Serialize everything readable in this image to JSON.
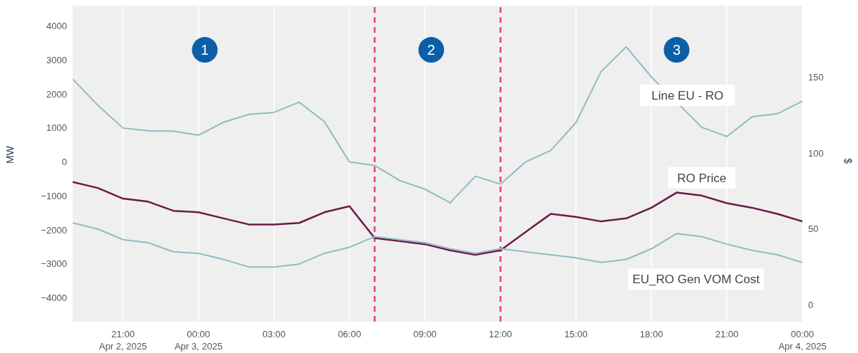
{
  "chart_data": {
    "type": "line",
    "x": [
      "2025-04-02T19:00",
      "2025-04-02T20:00",
      "2025-04-02T21:00",
      "2025-04-02T22:00",
      "2025-04-02T23:00",
      "2025-04-03T00:00",
      "2025-04-03T01:00",
      "2025-04-03T02:00",
      "2025-04-03T03:00",
      "2025-04-03T04:00",
      "2025-04-03T05:00",
      "2025-04-03T06:00",
      "2025-04-03T07:00",
      "2025-04-03T08:00",
      "2025-04-03T09:00",
      "2025-04-03T10:00",
      "2025-04-03T11:00",
      "2025-04-03T12:00",
      "2025-04-03T13:00",
      "2025-04-03T14:00",
      "2025-04-03T15:00",
      "2025-04-03T16:00",
      "2025-04-03T17:00",
      "2025-04-03T18:00",
      "2025-04-03T19:00",
      "2025-04-03T20:00",
      "2025-04-03T21:00",
      "2025-04-03T22:00",
      "2025-04-03T23:00",
      "2025-04-04T00:00"
    ],
    "series": [
      {
        "name": "Line EU - RO",
        "color": "#8fbcc4",
        "values": [
          2440,
          1670,
          1000,
          920,
          910,
          790,
          1170,
          1400,
          1460,
          1760,
          1190,
          0,
          -100,
          -550,
          -800,
          -1200,
          -420,
          -650,
          0,
          340,
          1160,
          2660,
          3390,
          2500,
          null,
          1020,
          750,
          1330,
          1420,
          1790
        ]
      },
      {
        "name": "RO Price",
        "color": "#6b1a4a",
        "axis": "y2",
        "values": [
          81,
          77,
          70,
          68,
          62,
          61,
          57,
          53,
          53,
          54,
          61,
          65,
          44,
          42,
          40,
          36,
          33,
          36,
          48,
          60,
          58,
          55,
          57,
          64,
          74,
          72,
          67,
          64,
          60,
          55
        ]
      },
      {
        "name": "EU_RO Gen VOM Cost",
        "color": "#8fbcc4",
        "axis": "y2",
        "values": [
          54,
          50,
          43,
          41,
          35,
          34,
          30,
          25,
          25,
          27,
          34,
          38,
          45,
          43,
          41,
          37,
          34,
          37,
          35,
          33,
          31,
          28,
          30,
          37,
          47,
          45,
          40,
          36,
          33,
          28
        ]
      }
    ],
    "ylabel": "MW",
    "y2label": "$",
    "xlim": [
      "2025-04-02T19:00",
      "2025-04-04T00:00"
    ],
    "xticks": [
      {
        "value": "2025-04-02T21:00",
        "label": "21:00\nApr 2, 2025"
      },
      {
        "value": "2025-04-03T00:00",
        "label": "00:00\nApr 3, 2025"
      },
      {
        "value": "2025-04-03T03:00",
        "label": "03:00"
      },
      {
        "value": "2025-04-03T06:00",
        "label": "06:00"
      },
      {
        "value": "2025-04-03T09:00",
        "label": "09:00"
      },
      {
        "value": "2025-04-03T12:00",
        "label": "12:00"
      },
      {
        "value": "2025-04-03T15:00",
        "label": "15:00"
      },
      {
        "value": "2025-04-03T18:00",
        "label": "18:00"
      },
      {
        "value": "2025-04-03T21:00",
        "label": "21:00"
      },
      {
        "value": "2025-04-04T00:00",
        "label": "00:00\nApr 4, 2025"
      }
    ],
    "ylim": [
      -4700,
      4600
    ],
    "yticks": [
      {
        "value": -4000,
        "label": "−4000"
      },
      {
        "value": -3000,
        "label": "−3000"
      },
      {
        "value": -2000,
        "label": "−2000"
      },
      {
        "value": -1000,
        "label": "−1000"
      },
      0,
      1000,
      2000,
      3000,
      4000
    ],
    "y2lim": [
      -11,
      197
    ],
    "y2ticks": [
      0,
      50,
      100,
      150
    ],
    "ref_lines": [
      {
        "axis": "x",
        "value": "2025-04-03T07:00",
        "color": "#e8455f",
        "line_style": "dashed"
      },
      {
        "axis": "x",
        "value": "2025-04-03T12:00",
        "color": "#e8455f",
        "line_style": "dashed"
      }
    ],
    "annotations": [
      {
        "text": "1",
        "x": "2025-04-03T00:15",
        "y": 3300
      },
      {
        "text": "2",
        "x": "2025-04-03T09:15",
        "y": 3300
      },
      {
        "text": "3",
        "x": "2025-04-03T19:00",
        "y": 3300
      }
    ],
    "grid": true
  }
}
